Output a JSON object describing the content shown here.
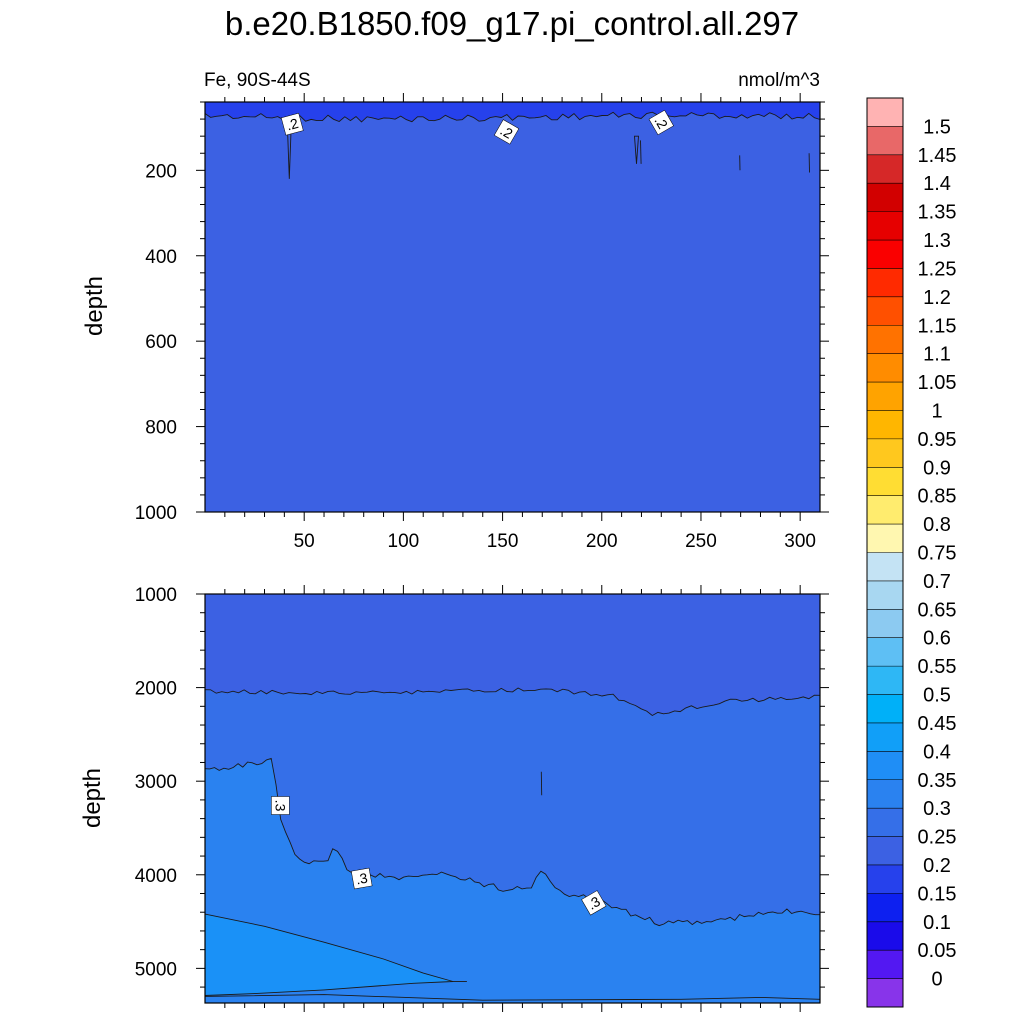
{
  "colors": {
    "fill_0_15_0_2": "#2641ec",
    "fill_0_2_0_25": "#3c61e3",
    "fill_0_25_0_3": "#356fe8",
    "fill_0_3_0_35": "#2a82f0",
    "fill_0_35_0_4": "#1a91f7",
    "contour_line": "#1a1a1a",
    "background": "#ffffff"
  },
  "chart_data": [
    {
      "type": "heatmap",
      "title": "b.e20.B1850.f09_g17.pi_control.all.297",
      "subtitle_left": "Fe, 90S-44S",
      "subtitle_right": "nmol/m^3",
      "ylabel": "depth",
      "xlim": [
        0,
        310
      ],
      "ylim": [
        1000,
        40
      ],
      "x_ticks": [
        50,
        100,
        150,
        200,
        250,
        300
      ],
      "x_tick_labels": [
        "50",
        "100",
        "150",
        "200",
        "250",
        "300"
      ],
      "y_ticks": [
        200,
        400,
        600,
        800,
        1000
      ],
      "y_tick_labels": [
        "200",
        "400",
        "600",
        "800",
        "1000"
      ],
      "regions": [
        {
          "range": [
            0.2,
            0.25
          ],
          "depth_from": 90,
          "depth_to": 1000
        },
        {
          "range": [
            0.15,
            0.2
          ],
          "depth_from": 40,
          "depth_to": 75
        }
      ],
      "contour_labels": [
        {
          "text": ".2",
          "x": 44,
          "y": 92
        },
        {
          "text": ".2",
          "x": 152,
          "y": 110
        },
        {
          "text": ".2",
          "x": 230,
          "y": 88
        }
      ]
    },
    {
      "type": "heatmap",
      "ylabel": "depth",
      "xlim": [
        0,
        310
      ],
      "ylim": [
        5370,
        1000
      ],
      "x_ticks": [
        50,
        100,
        150,
        200,
        250,
        300
      ],
      "y_ticks": [
        1000,
        2000,
        3000,
        4000,
        5000
      ],
      "y_tick_labels": [
        "1000",
        "2000",
        "3000",
        "4000",
        "5000"
      ],
      "regions": [
        {
          "range": [
            0.2,
            0.25
          ],
          "depth_from": 1000,
          "depth_to": 2050
        },
        {
          "range": [
            0.25,
            0.3
          ],
          "depth_from": 2050,
          "depth_to": 4000
        },
        {
          "range": [
            0.3,
            0.35
          ],
          "depth_from": 4000,
          "depth_to": 5370
        },
        {
          "range": [
            0.35,
            0.4
          ],
          "depth_from": 4450,
          "depth_to": 5300
        }
      ],
      "contour_labels": [
        {
          "text": ".3",
          "x": 38,
          "y": 3260
        },
        {
          "text": ".3",
          "x": 79,
          "y": 4040
        },
        {
          "text": ".3",
          "x": 196,
          "y": 4300
        }
      ]
    }
  ],
  "colorbar": {
    "labels": [
      "1.5",
      "1.45",
      "1.4",
      "1.35",
      "1.3",
      "1.25",
      "1.2",
      "1.15",
      "1.1",
      "1.05",
      "1",
      "0.95",
      "0.9",
      "0.85",
      "0.8",
      "0.75",
      "0.7",
      "0.65",
      "0.6",
      "0.55",
      "0.5",
      "0.45",
      "0.4",
      "0.35",
      "0.3",
      "0.25",
      "0.2",
      "0.15",
      "0.1",
      "0.05",
      "0"
    ],
    "colors": [
      "#ffb3b3",
      "#e86868",
      "#d62828",
      "#d20000",
      "#e60000",
      "#fa0000",
      "#ff2a00",
      "#ff5000",
      "#ff7200",
      "#ff8c00",
      "#ffa300",
      "#ffb600",
      "#ffc81e",
      "#ffdd33",
      "#ffec6e",
      "#fff7b0",
      "#c4e3f4",
      "#a8d7f1",
      "#8ccaf1",
      "#5ebff4",
      "#2eb7f5",
      "#00b0f8",
      "#119ff8",
      "#1f8ef6",
      "#2a82f0",
      "#356fe8",
      "#3c61e3",
      "#2641ec",
      "#0d20f0",
      "#1a0bea",
      "#5318f2",
      "#8834ea"
    ]
  }
}
